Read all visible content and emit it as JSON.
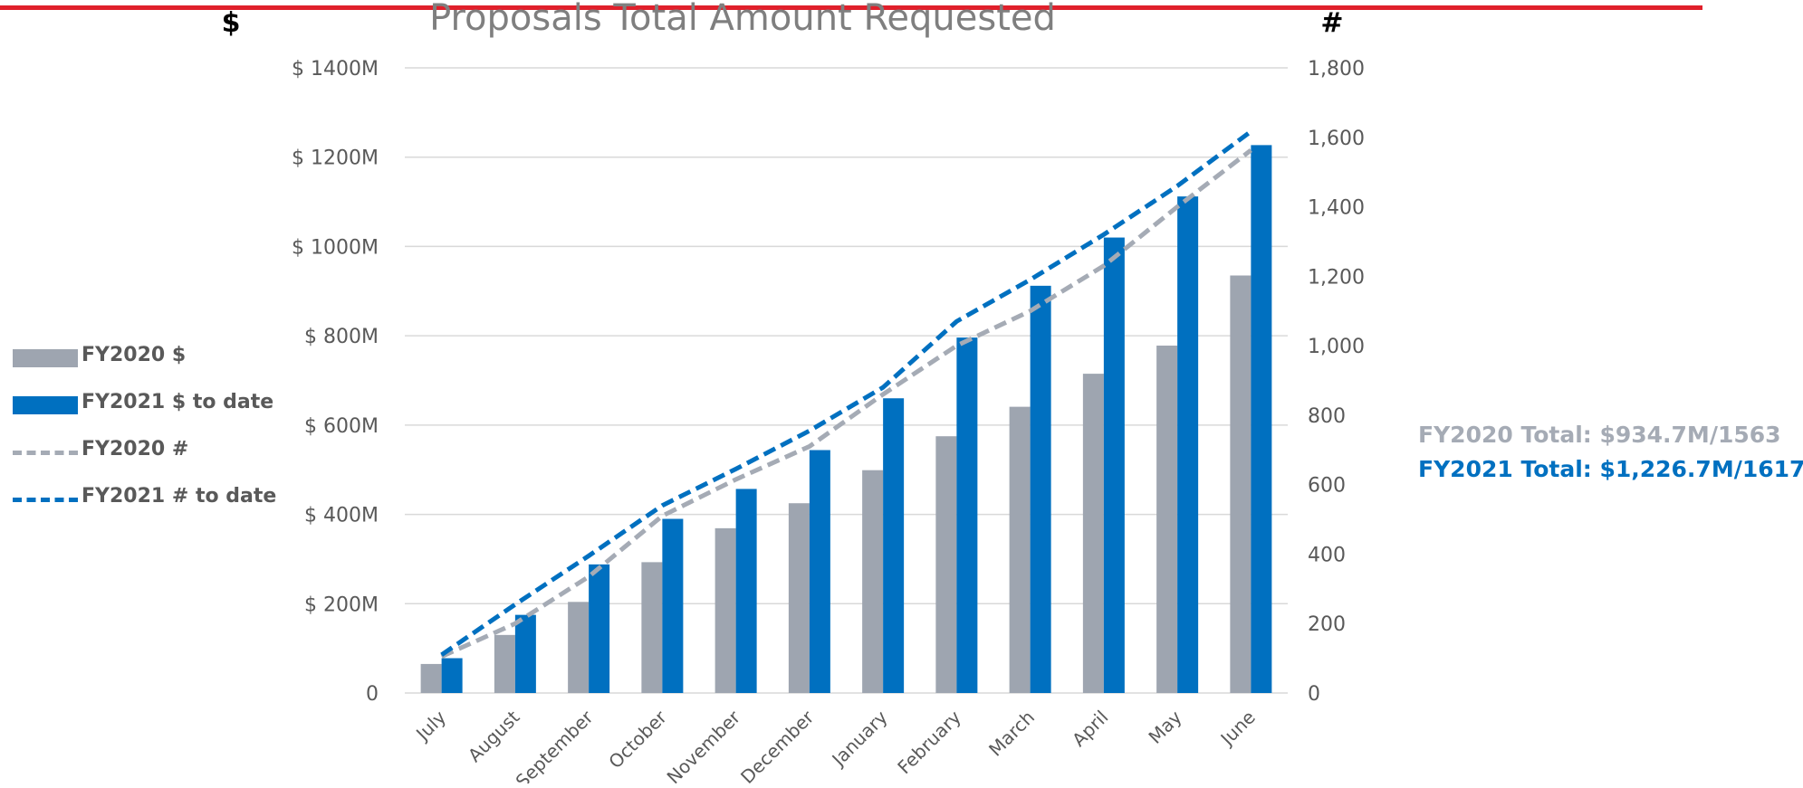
{
  "chart_data": {
    "type": "bar",
    "title": "Proposals Total Amount Requested",
    "left_axis_label": "$",
    "right_axis_label": "#",
    "categories": [
      "July",
      "August",
      "September",
      "October",
      "November",
      "December",
      "January",
      "February",
      "March",
      "April",
      "May",
      "June"
    ],
    "left_axis": {
      "ylim": [
        0,
        1400
      ],
      "unit": "M",
      "ticks": [
        {
          "value": 0,
          "label": "0"
        },
        {
          "value": 200,
          "label": "$ 200M"
        },
        {
          "value": 400,
          "label": "$ 400M"
        },
        {
          "value": 600,
          "label": "$ 600M"
        },
        {
          "value": 800,
          "label": "$ 800M"
        },
        {
          "value": 1000,
          "label": "$ 1000M"
        },
        {
          "value": 1200,
          "label": "$ 1200M"
        },
        {
          "value": 1400,
          "label": "$ 1400M"
        }
      ]
    },
    "right_axis": {
      "ylim": [
        0,
        1800
      ],
      "ticks": [
        {
          "value": 0,
          "label": "0"
        },
        {
          "value": 200,
          "label": "200"
        },
        {
          "value": 400,
          "label": "400"
        },
        {
          "value": 600,
          "label": "600"
        },
        {
          "value": 800,
          "label": "800"
        },
        {
          "value": 1000,
          "label": "1,000"
        },
        {
          "value": 1200,
          "label": "1,200"
        },
        {
          "value": 1400,
          "label": "1,400"
        },
        {
          "value": 1600,
          "label": "1,600"
        },
        {
          "value": 1800,
          "label": "1,800"
        }
      ]
    },
    "grid": true,
    "series": [
      {
        "name": "FY2020 $",
        "type": "bar",
        "axis": "left",
        "color": "#9ea5b0",
        "values": [
          65,
          130,
          204,
          293,
          369,
          425,
          499,
          575,
          641,
          715,
          778,
          935
        ]
      },
      {
        "name": "FY2021 $ to date",
        "type": "bar",
        "axis": "left",
        "color": "#0070c0",
        "values": [
          78,
          175,
          288,
          390,
          457,
          544,
          660,
          796,
          912,
          1020,
          1112,
          1227
        ]
      },
      {
        "name": "FY2020 #",
        "type": "line",
        "style": "dashed",
        "axis": "right",
        "color": "#a5abb5",
        "values": [
          105,
          200,
          335,
          510,
          615,
          710,
          860,
          1000,
          1100,
          1230,
          1400,
          1563
        ]
      },
      {
        "name": "FY2021 # to date",
        "type": "line",
        "style": "dashed",
        "axis": "right",
        "color": "#0070c0",
        "values": [
          110,
          255,
          395,
          540,
          645,
          755,
          880,
          1070,
          1190,
          1320,
          1460,
          1617
        ]
      }
    ],
    "legend_position": "left"
  },
  "totals": {
    "fy2020": {
      "text": "FY2020 Total: $934.7M/1563",
      "color": "#a5abb5"
    },
    "fy2021": {
      "text": "FY2021 Total: $1,226.7M/1617",
      "color": "#0070c0"
    }
  },
  "colors": {
    "top_rule": "#e0202b",
    "gridline": "#d9d9d9",
    "tick_text": "#595959",
    "title_text": "#7f7f7f"
  }
}
